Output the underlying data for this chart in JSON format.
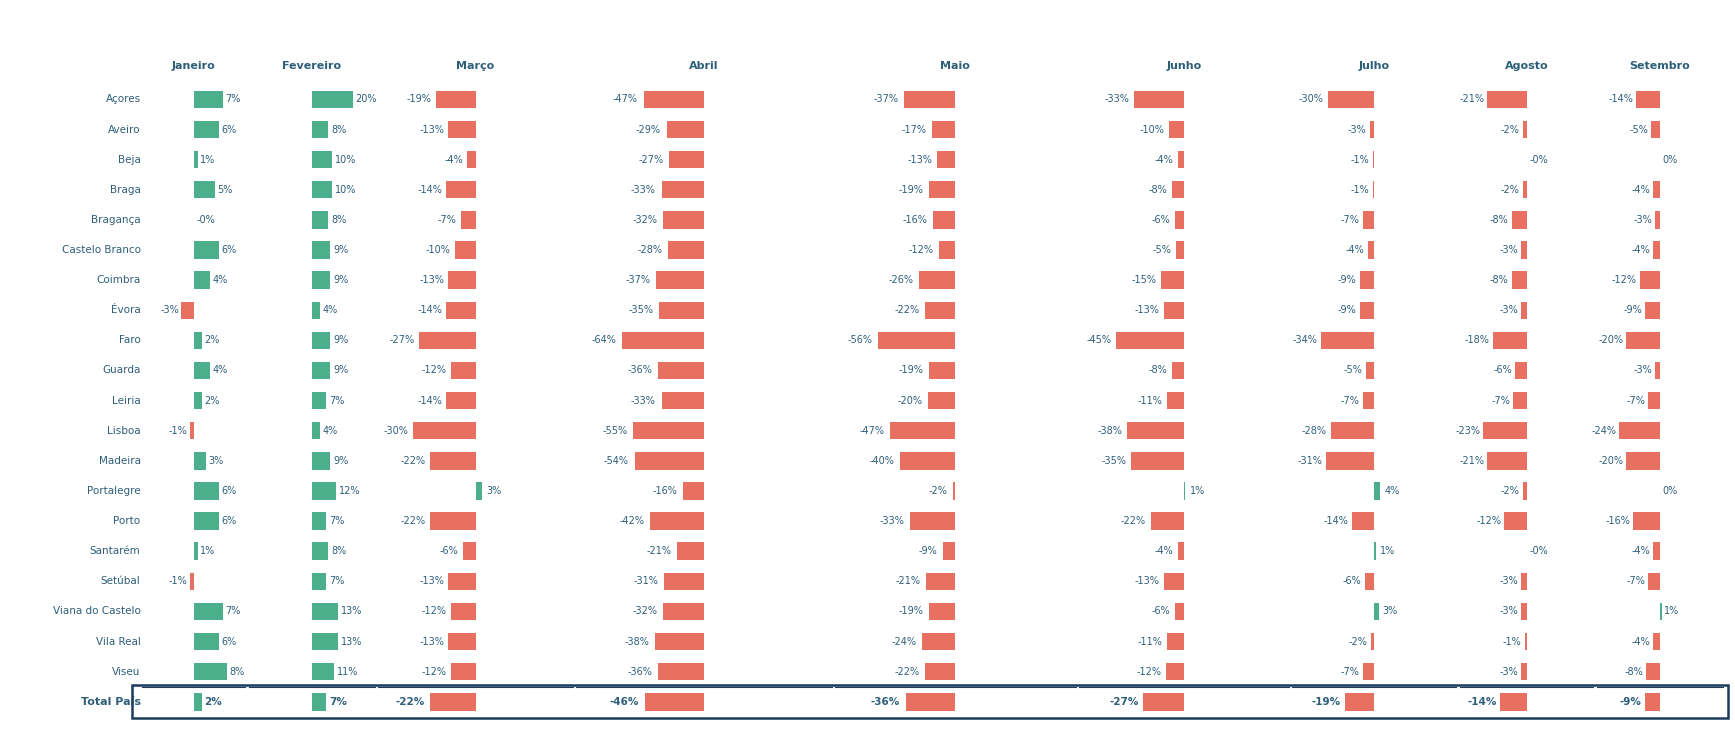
{
  "districts": [
    "Açores",
    "Aveiro",
    "Beja",
    "Braga",
    "Bragança",
    "Castelo Branco",
    "Coimbra",
    "Évora",
    "Faro",
    "Guarda",
    "Leiria",
    "Lisboa",
    "Madeira",
    "Portalegre",
    "Porto",
    "Santarém",
    "Setúbal",
    "Viana do Castelo",
    "Vila Real",
    "Viseu",
    "Total País"
  ],
  "months": [
    "Janeiro",
    "Fevereiro",
    "Março",
    "Abril",
    "Maio",
    "Junho",
    "Julho",
    "Agosto",
    "Setembro"
  ],
  "data": {
    "Açores": [
      7,
      20,
      -19,
      -47,
      -37,
      -33,
      -30,
      -21,
      -14
    ],
    "Aveiro": [
      6,
      8,
      -13,
      -29,
      -17,
      -10,
      -3,
      -2,
      -5
    ],
    "Beja": [
      1,
      10,
      -4,
      -27,
      -13,
      -4,
      -1,
      0,
      0
    ],
    "Braga": [
      5,
      10,
      -14,
      -33,
      -19,
      -8,
      -1,
      -2,
      -4
    ],
    "Bragança": [
      0,
      8,
      -7,
      -32,
      -16,
      -6,
      -7,
      -8,
      -3
    ],
    "Castelo Branco": [
      6,
      9,
      -10,
      -28,
      -12,
      -5,
      -4,
      -3,
      -4
    ],
    "Coimbra": [
      4,
      9,
      -13,
      -37,
      -26,
      -15,
      -9,
      -8,
      -12
    ],
    "Évora": [
      -3,
      4,
      -14,
      -35,
      -22,
      -13,
      -9,
      -3,
      -9
    ],
    "Faro": [
      2,
      9,
      -27,
      -64,
      -56,
      -45,
      -34,
      -18,
      -20
    ],
    "Guarda": [
      4,
      9,
      -12,
      -36,
      -19,
      -8,
      -5,
      -6,
      -3
    ],
    "Leiria": [
      2,
      7,
      -14,
      -33,
      -20,
      -11,
      -7,
      -7,
      -7
    ],
    "Lisboa": [
      -1,
      4,
      -30,
      -55,
      -47,
      -38,
      -28,
      -23,
      -24
    ],
    "Madeira": [
      3,
      9,
      -22,
      -54,
      -40,
      -35,
      -31,
      -21,
      -20
    ],
    "Portalegre": [
      6,
      12,
      3,
      -16,
      -2,
      1,
      4,
      -2,
      0
    ],
    "Porto": [
      6,
      7,
      -22,
      -42,
      -33,
      -22,
      -14,
      -12,
      -16
    ],
    "Santarém": [
      1,
      8,
      -6,
      -21,
      -9,
      -4,
      1,
      0,
      -4
    ],
    "Setúbal": [
      -1,
      7,
      -13,
      -31,
      -21,
      -13,
      -6,
      -3,
      -7
    ],
    "Viana do Castelo": [
      7,
      13,
      -12,
      -32,
      -19,
      -6,
      3,
      -3,
      1
    ],
    "Vila Real": [
      6,
      13,
      -13,
      -38,
      -24,
      -11,
      -2,
      -1,
      -4
    ],
    "Viseu": [
      8,
      11,
      -12,
      -36,
      -22,
      -12,
      -7,
      -3,
      -8
    ],
    "Total País": [
      2,
      7,
      -22,
      -46,
      -36,
      -27,
      -19,
      -14,
      -9
    ]
  },
  "special_labels": {
    "Bragança_0": "-0%",
    "Lisboa_0": "-1%",
    "Évora_0": "-3%",
    "Setúbal_0": "-1%",
    "Beja_7": "-0%",
    "Santarém_7": "-0%"
  },
  "positive_color": "#4CAF8C",
  "negative_color": "#E87060",
  "label_color": "#2E5F7A",
  "title_color": "#2E5F7A",
  "background_color": "#FFFFFF",
  "total_box_color": "#1B3A5C",
  "col_widths": [
    0.7,
    0.85,
    1.3,
    1.7,
    1.6,
    1.4,
    1.1,
    0.9,
    0.85
  ]
}
